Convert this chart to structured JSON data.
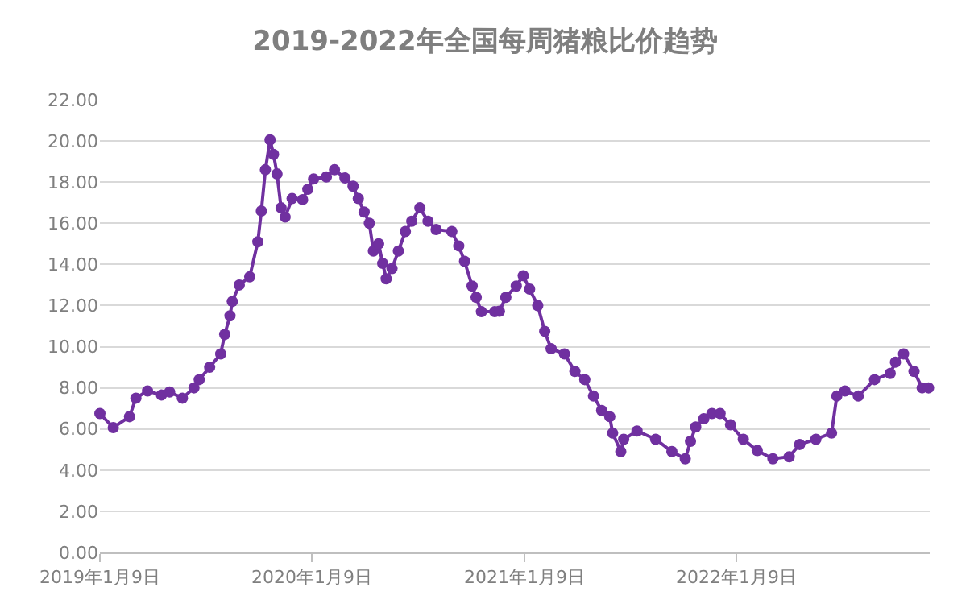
{
  "chart_data": {
    "type": "line",
    "title": "2019-2022年全国每周猪粮比价趋势",
    "x": [
      "2019-01-09",
      "2019-02-01",
      "2019-03-01",
      "2019-03-12",
      "2019-04-01",
      "2019-04-25",
      "2019-05-09",
      "2019-05-31",
      "2019-06-20",
      "2019-06-29",
      "2019-07-17",
      "2019-08-05",
      "2019-08-12",
      "2019-08-21",
      "2019-08-25",
      "2019-09-06",
      "2019-09-24",
      "2019-10-08",
      "2019-10-14",
      "2019-10-21",
      "2019-10-29",
      "2019-11-04",
      "2019-11-10",
      "2019-11-17",
      "2019-11-24",
      "2019-12-06",
      "2019-12-24",
      "2020-01-02",
      "2020-01-12",
      "2020-02-03",
      "2020-02-17",
      "2020-03-06",
      "2020-03-20",
      "2020-03-29",
      "2020-04-08",
      "2020-04-17",
      "2020-04-24",
      "2020-05-03",
      "2020-05-10",
      "2020-05-16",
      "2020-05-26",
      "2020-06-06",
      "2020-06-18",
      "2020-06-29",
      "2020-07-13",
      "2020-07-27",
      "2020-08-10",
      "2020-09-06",
      "2020-09-18",
      "2020-09-28",
      "2020-10-11",
      "2020-10-18",
      "2020-10-27",
      "2020-11-19",
      "2020-11-27",
      "2020-12-08",
      "2020-12-26",
      "2021-01-07",
      "2021-01-18",
      "2021-02-01",
      "2021-02-13",
      "2021-02-24",
      "2021-03-19",
      "2021-04-06",
      "2021-04-23",
      "2021-05-08",
      "2021-05-22",
      "2021-06-05",
      "2021-06-10",
      "2021-06-24",
      "2021-06-29",
      "2021-07-22",
      "2021-08-23",
      "2021-09-20",
      "2021-10-13",
      "2021-10-22",
      "2021-10-31",
      "2021-11-14",
      "2021-11-28",
      "2021-12-12",
      "2021-12-30",
      "2022-01-21",
      "2022-02-14",
      "2022-03-13",
      "2022-04-10",
      "2022-04-28",
      "2022-05-26",
      "2022-06-22",
      "2022-07-01",
      "2022-07-15",
      "2022-08-07",
      "2022-09-04",
      "2022-10-01",
      "2022-10-10",
      "2022-10-24",
      "2022-11-11",
      "2022-11-25",
      "2022-12-06"
    ],
    "series": [
      {
        "color": "#7030a0",
        "values": [
          6.75,
          6.07,
          6.6,
          7.5,
          7.85,
          7.65,
          7.8,
          7.5,
          8.0,
          8.4,
          9.0,
          9.65,
          10.6,
          11.5,
          12.2,
          13.0,
          13.4,
          15.1,
          16.6,
          18.6,
          20.05,
          19.35,
          18.4,
          16.75,
          16.3,
          17.2,
          17.15,
          17.65,
          18.15,
          18.25,
          18.6,
          18.2,
          17.8,
          17.2,
          16.55,
          16.0,
          14.65,
          15.0,
          14.05,
          13.3,
          13.8,
          14.65,
          15.6,
          16.1,
          16.75,
          16.1,
          15.7,
          15.6,
          14.9,
          14.15,
          12.95,
          12.4,
          11.7,
          11.7,
          11.72,
          12.4,
          12.95,
          13.45,
          12.8,
          12.0,
          10.75,
          9.9,
          9.65,
          8.8,
          8.4,
          7.6,
          6.9,
          6.6,
          5.8,
          4.9,
          5.5,
          5.9,
          5.5,
          4.9,
          4.55,
          5.4,
          6.1,
          6.5,
          6.75,
          6.75,
          6.2,
          5.5,
          4.95,
          4.55,
          4.65,
          5.25,
          5.5,
          5.8,
          7.6,
          7.85,
          7.6,
          8.4,
          8.7,
          9.25,
          9.65,
          8.8,
          8.0,
          8.0
        ]
      }
    ],
    "xlim": [
      "2019-01-09",
      "2022-12-08"
    ],
    "xticks": [
      {
        "value": "2019-01-09",
        "label": "2019年1月9日"
      },
      {
        "value": "2020-01-09",
        "label": "2020年1月9日"
      },
      {
        "value": "2021-01-09",
        "label": "2021年1月9日"
      },
      {
        "value": "2022-01-09",
        "label": "2022年1月9日"
      }
    ],
    "ylim": [
      0,
      22
    ],
    "yticks": [
      {
        "value": 0,
        "label": "0.00"
      },
      {
        "value": 2,
        "label": "2.00"
      },
      {
        "value": 4,
        "label": "4.00"
      },
      {
        "value": 6,
        "label": "6.00"
      },
      {
        "value": 8,
        "label": "8.00"
      },
      {
        "value": 10,
        "label": "10.00"
      },
      {
        "value": 12,
        "label": "12.00"
      },
      {
        "value": 14,
        "label": "14.00"
      },
      {
        "value": 16,
        "label": "16.00"
      },
      {
        "value": 18,
        "label": "18.00"
      },
      {
        "value": 20,
        "label": "20.00"
      },
      {
        "value": 22,
        "label": "22.00"
      }
    ],
    "grid": "y",
    "marker": "circle",
    "line_style": "solid"
  }
}
